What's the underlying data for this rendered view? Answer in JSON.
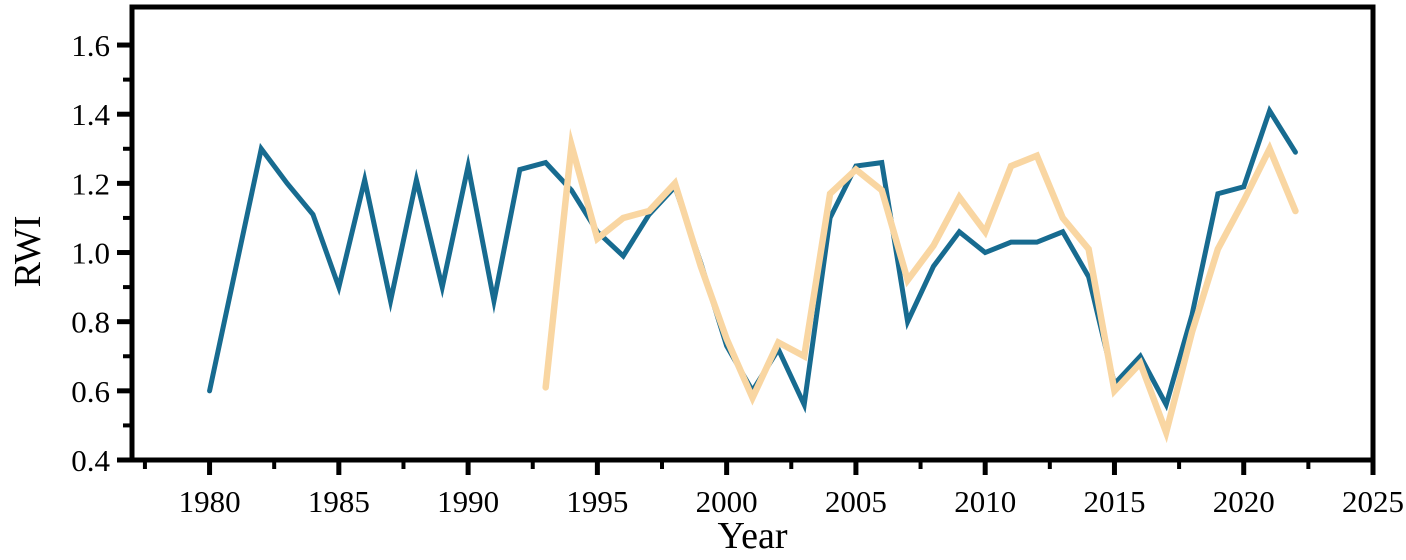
{
  "chart_data": {
    "type": "line",
    "title": "",
    "xlabel": "Year",
    "ylabel": "RWI",
    "xlim": [
      1977,
      2025
    ],
    "ylim": [
      0.4,
      1.71
    ],
    "grid": false,
    "legend_position": "none",
    "frame_color": "#000000",
    "background_color": "#ffffff",
    "x_major_ticks": [
      1980,
      1985,
      1990,
      1995,
      2000,
      2005,
      2010,
      2015,
      2020,
      2025
    ],
    "x_major_tick_labels": [
      "1980",
      "1985",
      "1990",
      "1995",
      "2000",
      "2005",
      "2010",
      "2015",
      "2020",
      "2025"
    ],
    "x_minor_ticks": [
      1977.5,
      1982.5,
      1987.5,
      1992.5,
      1997.5,
      2002.5,
      2007.5,
      2012.5,
      2017.5,
      2022.5
    ],
    "y_major_ticks": [
      0.4,
      0.6,
      0.8,
      1.0,
      1.2,
      1.4,
      1.6
    ],
    "y_major_tick_labels": [
      "0.4",
      "0.6",
      "0.8",
      "1.0",
      "1.2",
      "1.4",
      "1.6"
    ],
    "y_minor_ticks": [
      0.5,
      0.7,
      0.9,
      1.1,
      1.3,
      1.5
    ],
    "series": [
      {
        "name": "teal-series",
        "color": "#176b90",
        "line_width": 5,
        "x": [
          1980,
          1981,
          1982,
          1983,
          1984,
          1985,
          1986,
          1987,
          1988,
          1989,
          1990,
          1991,
          1992,
          1993,
          1994,
          1995,
          1996,
          1997,
          1998,
          1999,
          2000,
          2001,
          2002,
          2003,
          2004,
          2005,
          2006,
          2007,
          2008,
          2009,
          2010,
          2011,
          2012,
          2013,
          2014,
          2015,
          2016,
          2017,
          2018,
          2019,
          2020,
          2021,
          2022
        ],
        "values": [
          0.6,
          0.95,
          1.3,
          1.2,
          1.11,
          0.9,
          1.21,
          0.86,
          1.21,
          0.9,
          1.25,
          0.86,
          1.24,
          1.26,
          1.18,
          1.06,
          0.99,
          1.11,
          1.19,
          0.97,
          0.73,
          0.6,
          0.72,
          0.56,
          1.1,
          1.25,
          1.26,
          0.8,
          0.96,
          1.06,
          1.0,
          1.03,
          1.03,
          1.06,
          0.93,
          0.62,
          0.7,
          0.56,
          0.82,
          1.17,
          1.19,
          1.41,
          1.29
        ]
      },
      {
        "name": "peach-series",
        "color": "#f9d6a2",
        "line_width": 6.5,
        "x": [
          1993,
          1994,
          1995,
          1996,
          1997,
          1998,
          1999,
          2000,
          2001,
          2002,
          2003,
          2004,
          2005,
          2006,
          2007,
          2008,
          2009,
          2010,
          2011,
          2012,
          2013,
          2014,
          2015,
          2016,
          2017,
          2018,
          2019,
          2020,
          2021,
          2022
        ],
        "values": [
          0.61,
          1.31,
          1.04,
          1.1,
          1.12,
          1.2,
          0.96,
          0.75,
          0.58,
          0.74,
          0.7,
          1.17,
          1.24,
          1.18,
          0.92,
          1.02,
          1.16,
          1.06,
          1.25,
          1.28,
          1.1,
          1.01,
          0.6,
          0.68,
          0.48,
          0.77,
          1.01,
          1.15,
          1.3,
          1.12
        ]
      }
    ]
  }
}
